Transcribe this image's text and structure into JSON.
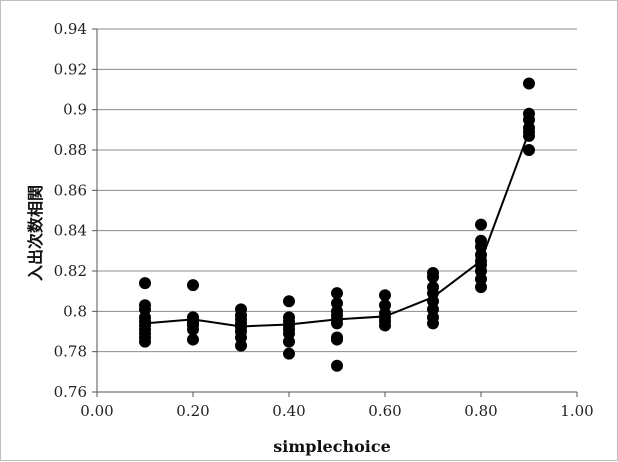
{
  "chart_data": {
    "type": "scatter",
    "xlabel": "simplechoice",
    "ylabel": "入出次数相関",
    "xlim": [
      0.0,
      1.0
    ],
    "ylim": [
      0.76,
      0.94
    ],
    "x_ticks": [
      "0.00",
      "0.20",
      "0.40",
      "0.60",
      "0.80",
      "1.00"
    ],
    "y_ticks": [
      "0.76",
      "0.78",
      "0.8",
      "0.82",
      "0.84",
      "0.86",
      "0.88",
      "0.9",
      "0.92",
      "0.94"
    ],
    "grid": "horizontal",
    "legend": "none",
    "colors": {
      "points": "#000000",
      "line": "#000000",
      "grid": "#8c8c8c"
    },
    "series": [
      {
        "type": "scatter",
        "points": [
          [
            0.1,
            0.814
          ],
          [
            0.1,
            0.803
          ],
          [
            0.1,
            0.801
          ],
          [
            0.1,
            0.797
          ],
          [
            0.1,
            0.795
          ],
          [
            0.1,
            0.793
          ],
          [
            0.1,
            0.791
          ],
          [
            0.1,
            0.789
          ],
          [
            0.1,
            0.787
          ],
          [
            0.1,
            0.785
          ],
          [
            0.2,
            0.813
          ],
          [
            0.2,
            0.797
          ],
          [
            0.2,
            0.795
          ],
          [
            0.2,
            0.794
          ],
          [
            0.2,
            0.793
          ],
          [
            0.2,
            0.791
          ],
          [
            0.2,
            0.786
          ],
          [
            0.3,
            0.801
          ],
          [
            0.3,
            0.798
          ],
          [
            0.3,
            0.796
          ],
          [
            0.3,
            0.794
          ],
          [
            0.3,
            0.792
          ],
          [
            0.3,
            0.79
          ],
          [
            0.3,
            0.787
          ],
          [
            0.3,
            0.783
          ],
          [
            0.4,
            0.805
          ],
          [
            0.4,
            0.797
          ],
          [
            0.4,
            0.795
          ],
          [
            0.4,
            0.793
          ],
          [
            0.4,
            0.791
          ],
          [
            0.4,
            0.789
          ],
          [
            0.4,
            0.785
          ],
          [
            0.4,
            0.779
          ],
          [
            0.5,
            0.809
          ],
          [
            0.5,
            0.804
          ],
          [
            0.5,
            0.8
          ],
          [
            0.5,
            0.798
          ],
          [
            0.5,
            0.796
          ],
          [
            0.5,
            0.794
          ],
          [
            0.5,
            0.787
          ],
          [
            0.5,
            0.786
          ],
          [
            0.5,
            0.773
          ],
          [
            0.6,
            0.808
          ],
          [
            0.6,
            0.803
          ],
          [
            0.6,
            0.799
          ],
          [
            0.6,
            0.797
          ],
          [
            0.6,
            0.795
          ],
          [
            0.6,
            0.793
          ],
          [
            0.7,
            0.819
          ],
          [
            0.7,
            0.817
          ],
          [
            0.7,
            0.812
          ],
          [
            0.7,
            0.809
          ],
          [
            0.7,
            0.805
          ],
          [
            0.7,
            0.801
          ],
          [
            0.7,
            0.797
          ],
          [
            0.7,
            0.794
          ],
          [
            0.8,
            0.843
          ],
          [
            0.8,
            0.835
          ],
          [
            0.8,
            0.832
          ],
          [
            0.8,
            0.828
          ],
          [
            0.8,
            0.825
          ],
          [
            0.8,
            0.823
          ],
          [
            0.8,
            0.82
          ],
          [
            0.8,
            0.816
          ],
          [
            0.8,
            0.812
          ],
          [
            0.9,
            0.913
          ],
          [
            0.9,
            0.898
          ],
          [
            0.9,
            0.895
          ],
          [
            0.9,
            0.891
          ],
          [
            0.9,
            0.889
          ],
          [
            0.9,
            0.887
          ],
          [
            0.9,
            0.88
          ]
        ]
      },
      {
        "type": "line",
        "x": [
          0.1,
          0.2,
          0.3,
          0.4,
          0.5,
          0.6,
          0.7,
          0.8,
          0.9
        ],
        "y": [
          0.794,
          0.796,
          0.7925,
          0.7935,
          0.796,
          0.7975,
          0.807,
          0.825,
          0.889
        ]
      }
    ]
  }
}
